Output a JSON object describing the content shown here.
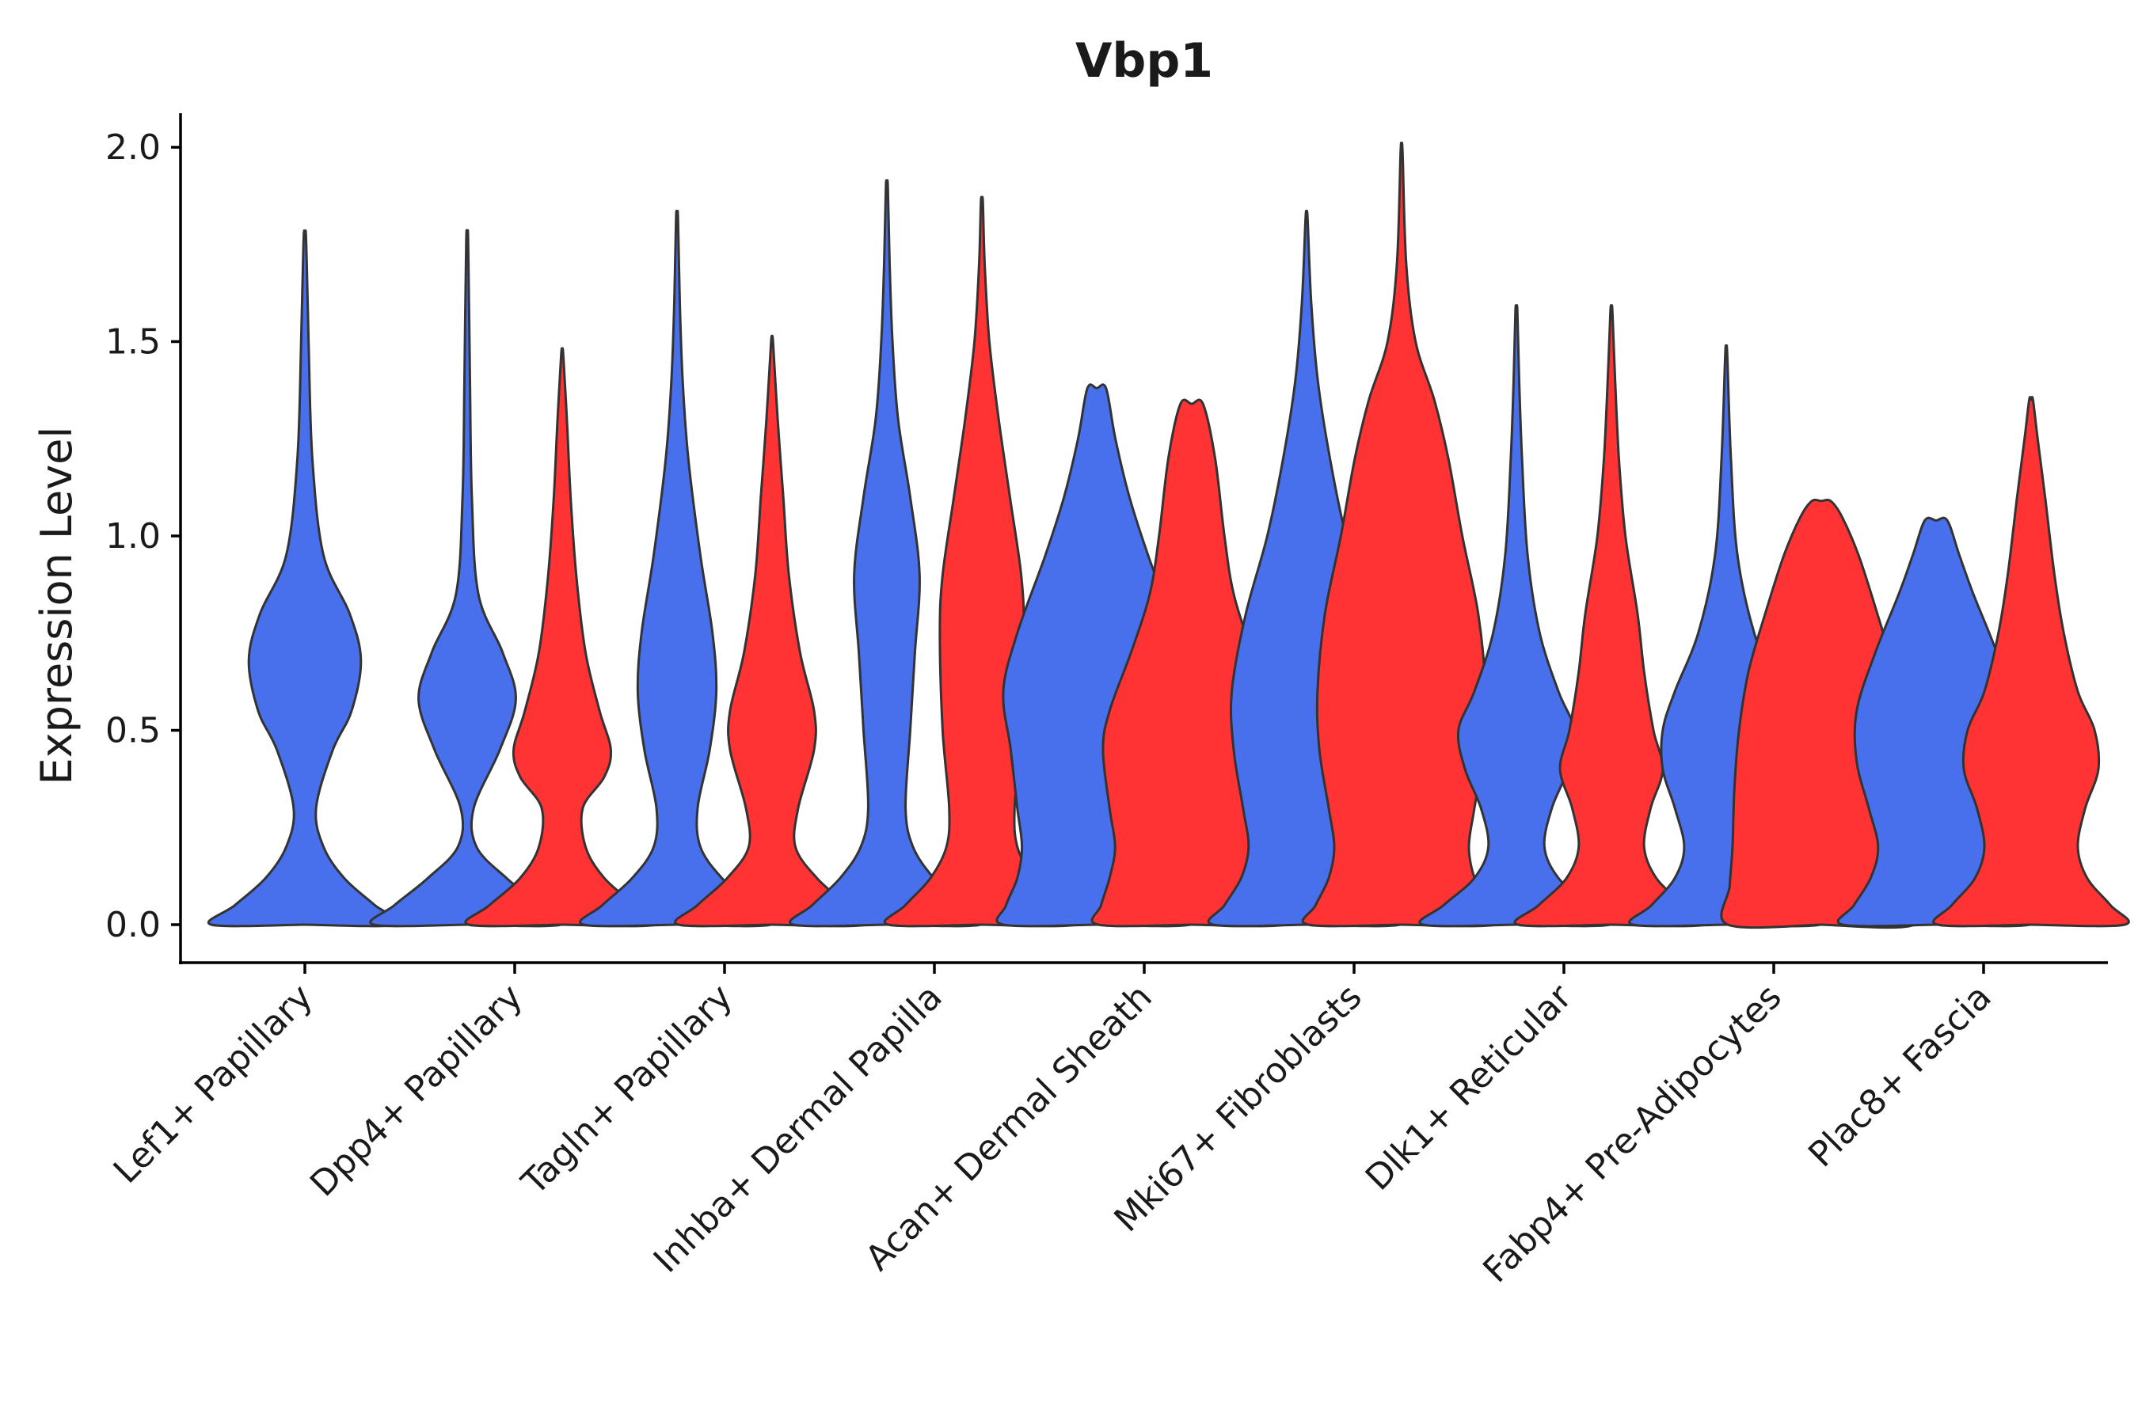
{
  "chart_data": {
    "type": "violin",
    "title": "Vbp1",
    "xlabel": "",
    "ylabel": "Expression Level",
    "ylim": [
      -0.1,
      2.1
    ],
    "yticks": [
      "0.0",
      "0.5",
      "1.0",
      "1.5",
      "2.0"
    ],
    "yticks_values": [
      0,
      0.5,
      1.0,
      1.5,
      2.0
    ],
    "grid": false,
    "legend": "none",
    "group_colors": {
      "A": "#4870ED",
      "B": "#FF3333"
    },
    "categories": [
      "Lef1+ Papillary",
      "Dpp4+ Papillary",
      "Tagln+ Papillary",
      "Inhba+ Dermal Papilla",
      "Acan+ Dermal Sheath",
      "Mki67+ Fibroblasts",
      "Dlk1+ Reticular",
      "Fabp4+ Pre-Adipocytes",
      "Plac8+ Fascia"
    ],
    "violins": [
      {
        "category": 0,
        "group": "A",
        "side": "center",
        "max": 1.78,
        "profile": [
          [
            0,
            1.0
          ],
          [
            0.05,
            0.75
          ],
          [
            0.12,
            0.42
          ],
          [
            0.2,
            0.2
          ],
          [
            0.3,
            0.12
          ],
          [
            0.45,
            0.3
          ],
          [
            0.55,
            0.5
          ],
          [
            0.68,
            0.6
          ],
          [
            0.8,
            0.48
          ],
          [
            0.95,
            0.2
          ],
          [
            1.2,
            0.08
          ],
          [
            1.5,
            0.04
          ],
          [
            1.7,
            0.02
          ],
          [
            1.78,
            0.01
          ]
        ]
      },
      {
        "category": 1,
        "group": "A",
        "side": "left",
        "max": 1.76,
        "profile": [
          [
            0,
            1.0
          ],
          [
            0.05,
            0.78
          ],
          [
            0.12,
            0.42
          ],
          [
            0.2,
            0.1
          ],
          [
            0.3,
            0.07
          ],
          [
            0.45,
            0.35
          ],
          [
            0.58,
            0.52
          ],
          [
            0.7,
            0.38
          ],
          [
            0.85,
            0.12
          ],
          [
            1.1,
            0.05
          ],
          [
            1.4,
            0.03
          ],
          [
            1.76,
            0.01
          ]
        ]
      },
      {
        "category": 1,
        "group": "B",
        "side": "right",
        "max": 1.47,
        "profile": [
          [
            0,
            1.0
          ],
          [
            0.05,
            0.78
          ],
          [
            0.12,
            0.45
          ],
          [
            0.2,
            0.25
          ],
          [
            0.3,
            0.22
          ],
          [
            0.38,
            0.45
          ],
          [
            0.45,
            0.52
          ],
          [
            0.55,
            0.4
          ],
          [
            0.7,
            0.25
          ],
          [
            0.9,
            0.15
          ],
          [
            1.1,
            0.09
          ],
          [
            1.3,
            0.05
          ],
          [
            1.47,
            0.01
          ]
        ]
      },
      {
        "category": 2,
        "group": "A",
        "side": "left",
        "max": 1.82,
        "profile": [
          [
            0,
            1.0
          ],
          [
            0.05,
            0.8
          ],
          [
            0.12,
            0.48
          ],
          [
            0.2,
            0.25
          ],
          [
            0.3,
            0.22
          ],
          [
            0.45,
            0.35
          ],
          [
            0.6,
            0.42
          ],
          [
            0.75,
            0.38
          ],
          [
            0.95,
            0.25
          ],
          [
            1.2,
            0.12
          ],
          [
            1.4,
            0.06
          ],
          [
            1.6,
            0.03
          ],
          [
            1.82,
            0.01
          ]
        ]
      },
      {
        "category": 2,
        "group": "B",
        "side": "right",
        "max": 1.5,
        "profile": [
          [
            0,
            1.0
          ],
          [
            0.05,
            0.8
          ],
          [
            0.12,
            0.48
          ],
          [
            0.2,
            0.25
          ],
          [
            0.3,
            0.28
          ],
          [
            0.45,
            0.45
          ],
          [
            0.55,
            0.45
          ],
          [
            0.7,
            0.3
          ],
          [
            0.9,
            0.18
          ],
          [
            1.1,
            0.12
          ],
          [
            1.3,
            0.06
          ],
          [
            1.5,
            0.01
          ]
        ]
      },
      {
        "category": 3,
        "group": "A",
        "side": "left",
        "max": 1.9,
        "profile": [
          [
            0,
            1.0
          ],
          [
            0.05,
            0.8
          ],
          [
            0.12,
            0.5
          ],
          [
            0.2,
            0.28
          ],
          [
            0.3,
            0.2
          ],
          [
            0.5,
            0.25
          ],
          [
            0.7,
            0.3
          ],
          [
            0.9,
            0.35
          ],
          [
            1.1,
            0.25
          ],
          [
            1.3,
            0.12
          ],
          [
            1.5,
            0.06
          ],
          [
            1.7,
            0.03
          ],
          [
            1.9,
            0.01
          ]
        ]
      },
      {
        "category": 3,
        "group": "B",
        "side": "right",
        "max": 1.86,
        "profile": [
          [
            0,
            1.0
          ],
          [
            0.05,
            0.82
          ],
          [
            0.12,
            0.55
          ],
          [
            0.2,
            0.38
          ],
          [
            0.3,
            0.35
          ],
          [
            0.5,
            0.42
          ],
          [
            0.75,
            0.45
          ],
          [
            0.9,
            0.42
          ],
          [
            1.1,
            0.3
          ],
          [
            1.3,
            0.18
          ],
          [
            1.5,
            0.08
          ],
          [
            1.7,
            0.03
          ],
          [
            1.86,
            0.01
          ]
        ]
      },
      {
        "category": 4,
        "group": "A",
        "side": "left",
        "max": 1.38,
        "profile": [
          [
            0,
            1.0
          ],
          [
            0.05,
            0.97
          ],
          [
            0.12,
            0.85
          ],
          [
            0.2,
            0.8
          ],
          [
            0.3,
            0.85
          ],
          [
            0.45,
            0.92
          ],
          [
            0.6,
            1.0
          ],
          [
            0.75,
            0.85
          ],
          [
            0.95,
            0.55
          ],
          [
            1.1,
            0.35
          ],
          [
            1.25,
            0.2
          ],
          [
            1.38,
            0.1
          ]
        ]
      },
      {
        "category": 4,
        "group": "B",
        "side": "right",
        "max": 1.34,
        "profile": [
          [
            0,
            1.0
          ],
          [
            0.05,
            0.97
          ],
          [
            0.12,
            0.88
          ],
          [
            0.2,
            0.82
          ],
          [
            0.3,
            0.88
          ],
          [
            0.45,
            0.95
          ],
          [
            0.55,
            0.88
          ],
          [
            0.7,
            0.65
          ],
          [
            0.85,
            0.45
          ],
          [
            1.0,
            0.35
          ],
          [
            1.2,
            0.25
          ],
          [
            1.34,
            0.12
          ]
        ]
      },
      {
        "category": 5,
        "group": "A",
        "side": "left",
        "max": 1.82,
        "profile": [
          [
            0,
            1.0
          ],
          [
            0.05,
            0.88
          ],
          [
            0.12,
            0.7
          ],
          [
            0.2,
            0.62
          ],
          [
            0.3,
            0.68
          ],
          [
            0.45,
            0.78
          ],
          [
            0.6,
            0.8
          ],
          [
            0.8,
            0.65
          ],
          [
            1.0,
            0.42
          ],
          [
            1.2,
            0.25
          ],
          [
            1.4,
            0.12
          ],
          [
            1.6,
            0.05
          ],
          [
            1.82,
            0.01
          ]
        ]
      },
      {
        "category": 5,
        "group": "B",
        "side": "right",
        "max": 1.99,
        "profile": [
          [
            0,
            1.0
          ],
          [
            0.05,
            0.92
          ],
          [
            0.12,
            0.78
          ],
          [
            0.2,
            0.72
          ],
          [
            0.3,
            0.78
          ],
          [
            0.45,
            0.88
          ],
          [
            0.6,
            0.9
          ],
          [
            0.8,
            0.82
          ],
          [
            1.0,
            0.65
          ],
          [
            1.2,
            0.5
          ],
          [
            1.35,
            0.35
          ],
          [
            1.5,
            0.15
          ],
          [
            1.7,
            0.05
          ],
          [
            1.99,
            0.01
          ]
        ]
      },
      {
        "category": 6,
        "group": "A",
        "side": "left",
        "max": 1.58,
        "profile": [
          [
            0,
            1.0
          ],
          [
            0.05,
            0.78
          ],
          [
            0.12,
            0.45
          ],
          [
            0.2,
            0.3
          ],
          [
            0.3,
            0.38
          ],
          [
            0.4,
            0.55
          ],
          [
            0.5,
            0.62
          ],
          [
            0.6,
            0.45
          ],
          [
            0.75,
            0.25
          ],
          [
            0.95,
            0.12
          ],
          [
            1.2,
            0.06
          ],
          [
            1.4,
            0.03
          ],
          [
            1.58,
            0.01
          ]
        ]
      },
      {
        "category": 6,
        "group": "B",
        "side": "right",
        "max": 1.58,
        "profile": [
          [
            0,
            1.0
          ],
          [
            0.05,
            0.78
          ],
          [
            0.12,
            0.48
          ],
          [
            0.2,
            0.35
          ],
          [
            0.3,
            0.42
          ],
          [
            0.4,
            0.55
          ],
          [
            0.5,
            0.45
          ],
          [
            0.65,
            0.35
          ],
          [
            0.8,
            0.28
          ],
          [
            1.0,
            0.15
          ],
          [
            1.2,
            0.08
          ],
          [
            1.4,
            0.04
          ],
          [
            1.58,
            0.01
          ]
        ]
      },
      {
        "category": 7,
        "group": "A",
        "side": "left",
        "max": 1.47,
        "profile": [
          [
            0,
            1.0
          ],
          [
            0.05,
            0.8
          ],
          [
            0.12,
            0.55
          ],
          [
            0.2,
            0.45
          ],
          [
            0.3,
            0.55
          ],
          [
            0.4,
            0.68
          ],
          [
            0.5,
            0.68
          ],
          [
            0.6,
            0.55
          ],
          [
            0.75,
            0.3
          ],
          [
            0.95,
            0.12
          ],
          [
            1.2,
            0.05
          ],
          [
            1.47,
            0.01
          ]
        ]
      },
      {
        "category": 7,
        "group": "B",
        "side": "right",
        "max": 1.09,
        "profile": [
          [
            0,
            1.0
          ],
          [
            0.1,
            0.98
          ],
          [
            0.2,
            0.95
          ],
          [
            0.35,
            0.93
          ],
          [
            0.5,
            0.88
          ],
          [
            0.65,
            0.78
          ],
          [
            0.8,
            0.6
          ],
          [
            0.95,
            0.4
          ],
          [
            1.05,
            0.22
          ],
          [
            1.09,
            0.1
          ]
        ]
      },
      {
        "category": 8,
        "group": "A",
        "side": "left",
        "max": 1.04,
        "profile": [
          [
            0,
            1.0
          ],
          [
            0.05,
            0.88
          ],
          [
            0.12,
            0.7
          ],
          [
            0.2,
            0.62
          ],
          [
            0.3,
            0.72
          ],
          [
            0.42,
            0.85
          ],
          [
            0.55,
            0.85
          ],
          [
            0.7,
            0.65
          ],
          [
            0.85,
            0.4
          ],
          [
            0.95,
            0.25
          ],
          [
            1.04,
            0.12
          ]
        ]
      },
      {
        "category": 8,
        "group": "B",
        "side": "right",
        "max": 1.35,
        "profile": [
          [
            0,
            1.0
          ],
          [
            0.05,
            0.85
          ],
          [
            0.12,
            0.6
          ],
          [
            0.2,
            0.5
          ],
          [
            0.3,
            0.58
          ],
          [
            0.4,
            0.72
          ],
          [
            0.5,
            0.68
          ],
          [
            0.6,
            0.5
          ],
          [
            0.75,
            0.35
          ],
          [
            0.9,
            0.25
          ],
          [
            1.1,
            0.15
          ],
          [
            1.25,
            0.07
          ],
          [
            1.35,
            0.02
          ]
        ]
      }
    ]
  }
}
